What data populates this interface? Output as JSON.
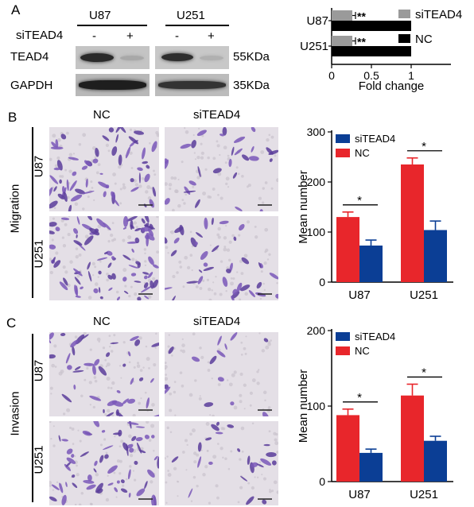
{
  "panels": {
    "a": "A",
    "b": "B",
    "c": "C"
  },
  "blot": {
    "cell_lines": [
      "U87",
      "U251"
    ],
    "row_label": "siTEAD4",
    "conditions": [
      "-",
      "+",
      "-",
      "+"
    ],
    "proteins": [
      {
        "name": "TEAD4",
        "size": "55KDa"
      },
      {
        "name": "GAPDH",
        "size": "35KDa"
      }
    ]
  },
  "micrographs": {
    "col_labels": [
      "NC",
      "siTEAD4"
    ],
    "row_labels": [
      "U87",
      "U251"
    ],
    "section_b": "Migration",
    "section_c": "Invasion"
  },
  "chart_data": [
    {
      "type": "bar",
      "orientation": "horizontal",
      "categories": [
        "U87",
        "U251"
      ],
      "series": [
        {
          "name": "siTEAD4",
          "color": "#9a9a9a",
          "values": [
            0.26,
            0.26
          ],
          "errors": [
            0.04,
            0.04
          ]
        },
        {
          "name": "NC",
          "color": "#000000",
          "values": [
            1.0,
            1.0
          ],
          "errors": [
            0,
            0
          ]
        }
      ],
      "significance": [
        "**",
        "**"
      ],
      "xlabel": "Fold change",
      "xlim": [
        0,
        1.5
      ],
      "xticks": [
        "0",
        "0.5",
        "1"
      ],
      "legend": "right"
    },
    {
      "type": "bar",
      "categories": [
        "U87",
        "U251"
      ],
      "series": [
        {
          "name": "NC",
          "color": "#e8262b",
          "values": [
            130,
            235
          ],
          "errors": [
            10,
            13
          ]
        },
        {
          "name": "siTEAD4",
          "color": "#0b3e95",
          "values": [
            73,
            104
          ],
          "errors": [
            11,
            18
          ]
        }
      ],
      "significance": [
        "*",
        "*"
      ],
      "ylabel": "Mean number",
      "ylim": [
        0,
        300
      ],
      "yticks": [
        "0",
        "100",
        "200",
        "300"
      ],
      "legend": "top-left"
    },
    {
      "type": "bar",
      "categories": [
        "U87",
        "U251"
      ],
      "series": [
        {
          "name": "NC",
          "color": "#e8262b",
          "values": [
            88,
            114
          ],
          "errors": [
            8,
            15
          ]
        },
        {
          "name": "siTEAD4",
          "color": "#0b3e95",
          "values": [
            38,
            54
          ],
          "errors": [
            5,
            6
          ]
        }
      ],
      "significance": [
        "*",
        "*"
      ],
      "ylabel": "Mean number",
      "ylim": [
        0,
        200
      ],
      "yticks": [
        "0",
        "100",
        "200"
      ],
      "legend": "top-left"
    }
  ]
}
